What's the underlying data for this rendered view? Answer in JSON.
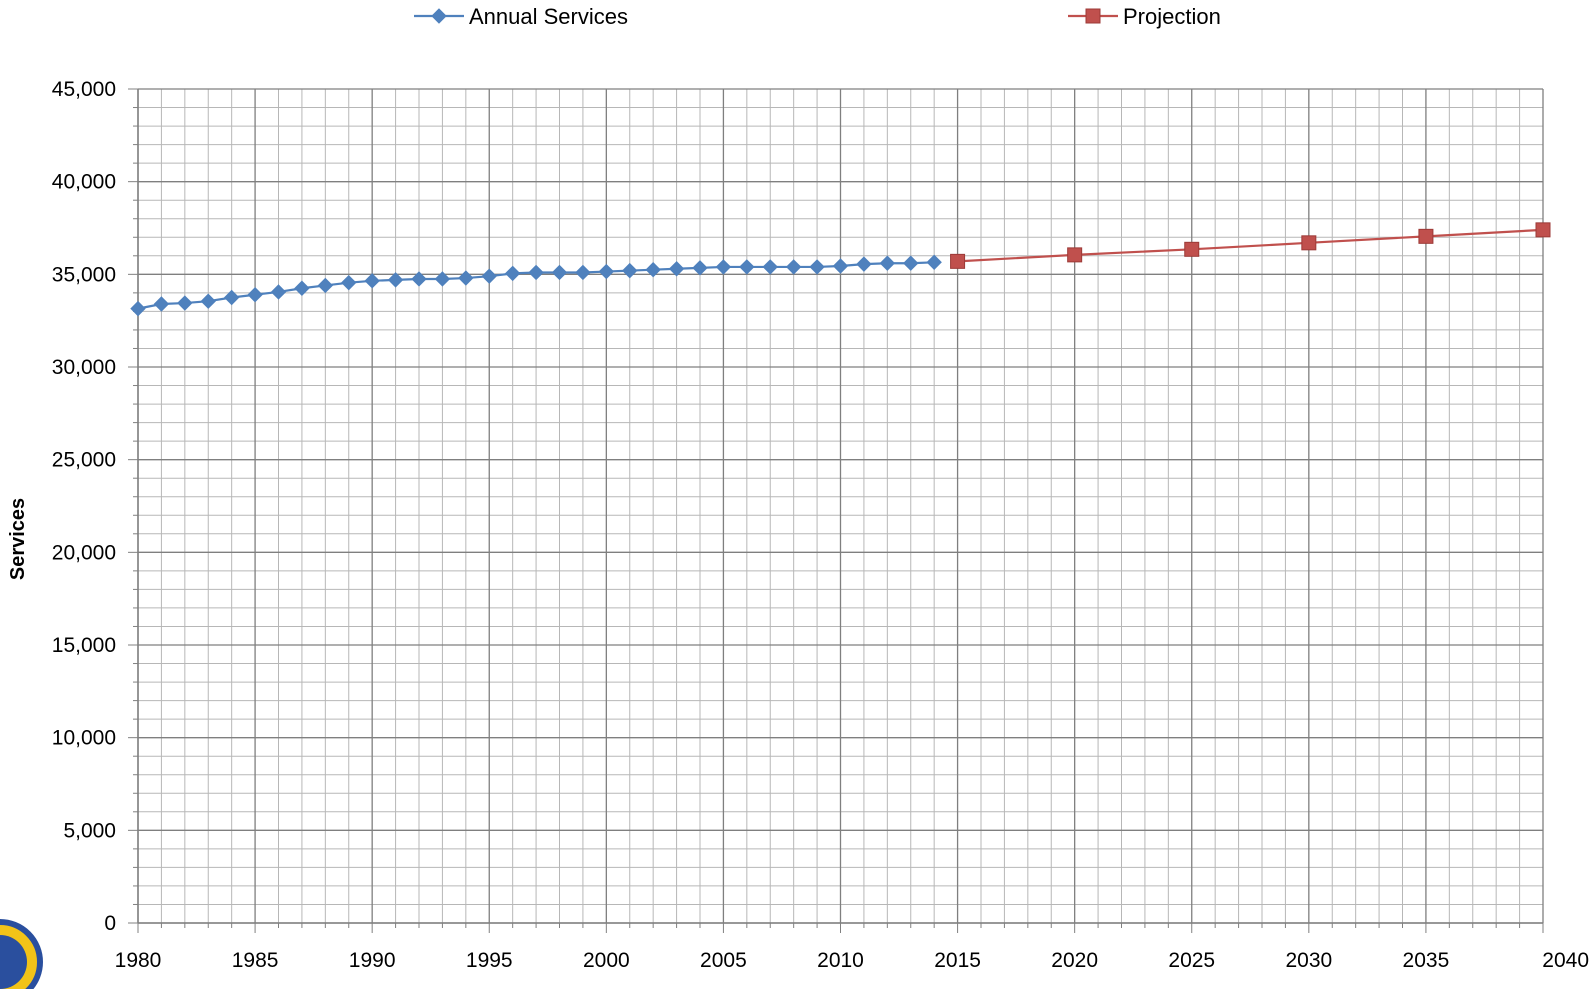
{
  "chart_data": {
    "type": "line",
    "title": "",
    "xlabel": "",
    "ylabel": "Services",
    "xlim": [
      1980,
      2040
    ],
    "ylim": [
      0,
      45000
    ],
    "x_ticks": [
      1980,
      1985,
      1990,
      1995,
      2000,
      2005,
      2010,
      2015,
      2020,
      2025,
      2030,
      2035,
      2040
    ],
    "y_ticks": [
      0,
      5000,
      10000,
      15000,
      20000,
      25000,
      30000,
      35000,
      40000,
      45000
    ],
    "y_tick_labels": [
      "0",
      "5,000",
      "10,000",
      "15,000",
      "20,000",
      "25,000",
      "30,000",
      "35,000",
      "40,000",
      "45,000"
    ],
    "grid": true,
    "legend_position": "top",
    "series": [
      {
        "name": "Annual Services",
        "color": "#4f81bd",
        "marker": "diamond",
        "x": [
          1980,
          1981,
          1982,
          1983,
          1984,
          1985,
          1986,
          1987,
          1988,
          1989,
          1990,
          1991,
          1992,
          1993,
          1994,
          1995,
          1996,
          1997,
          1998,
          1999,
          2000,
          2001,
          2002,
          2003,
          2004,
          2005,
          2006,
          2007,
          2008,
          2009,
          2010,
          2011,
          2012,
          2013,
          2014
        ],
        "values": [
          33150,
          33400,
          33450,
          33550,
          33750,
          33900,
          34050,
          34250,
          34400,
          34550,
          34650,
          34700,
          34750,
          34750,
          34800,
          34900,
          35050,
          35100,
          35100,
          35100,
          35150,
          35200,
          35250,
          35300,
          35350,
          35400,
          35400,
          35400,
          35400,
          35400,
          35450,
          35550,
          35600,
          35600,
          35650
        ]
      },
      {
        "name": "Projection",
        "color": "#c0504d",
        "marker": "square",
        "x": [
          2015,
          2020,
          2025,
          2030,
          2035,
          2040
        ],
        "values": [
          35700,
          36050,
          36350,
          36700,
          37050,
          37400
        ]
      }
    ]
  }
}
